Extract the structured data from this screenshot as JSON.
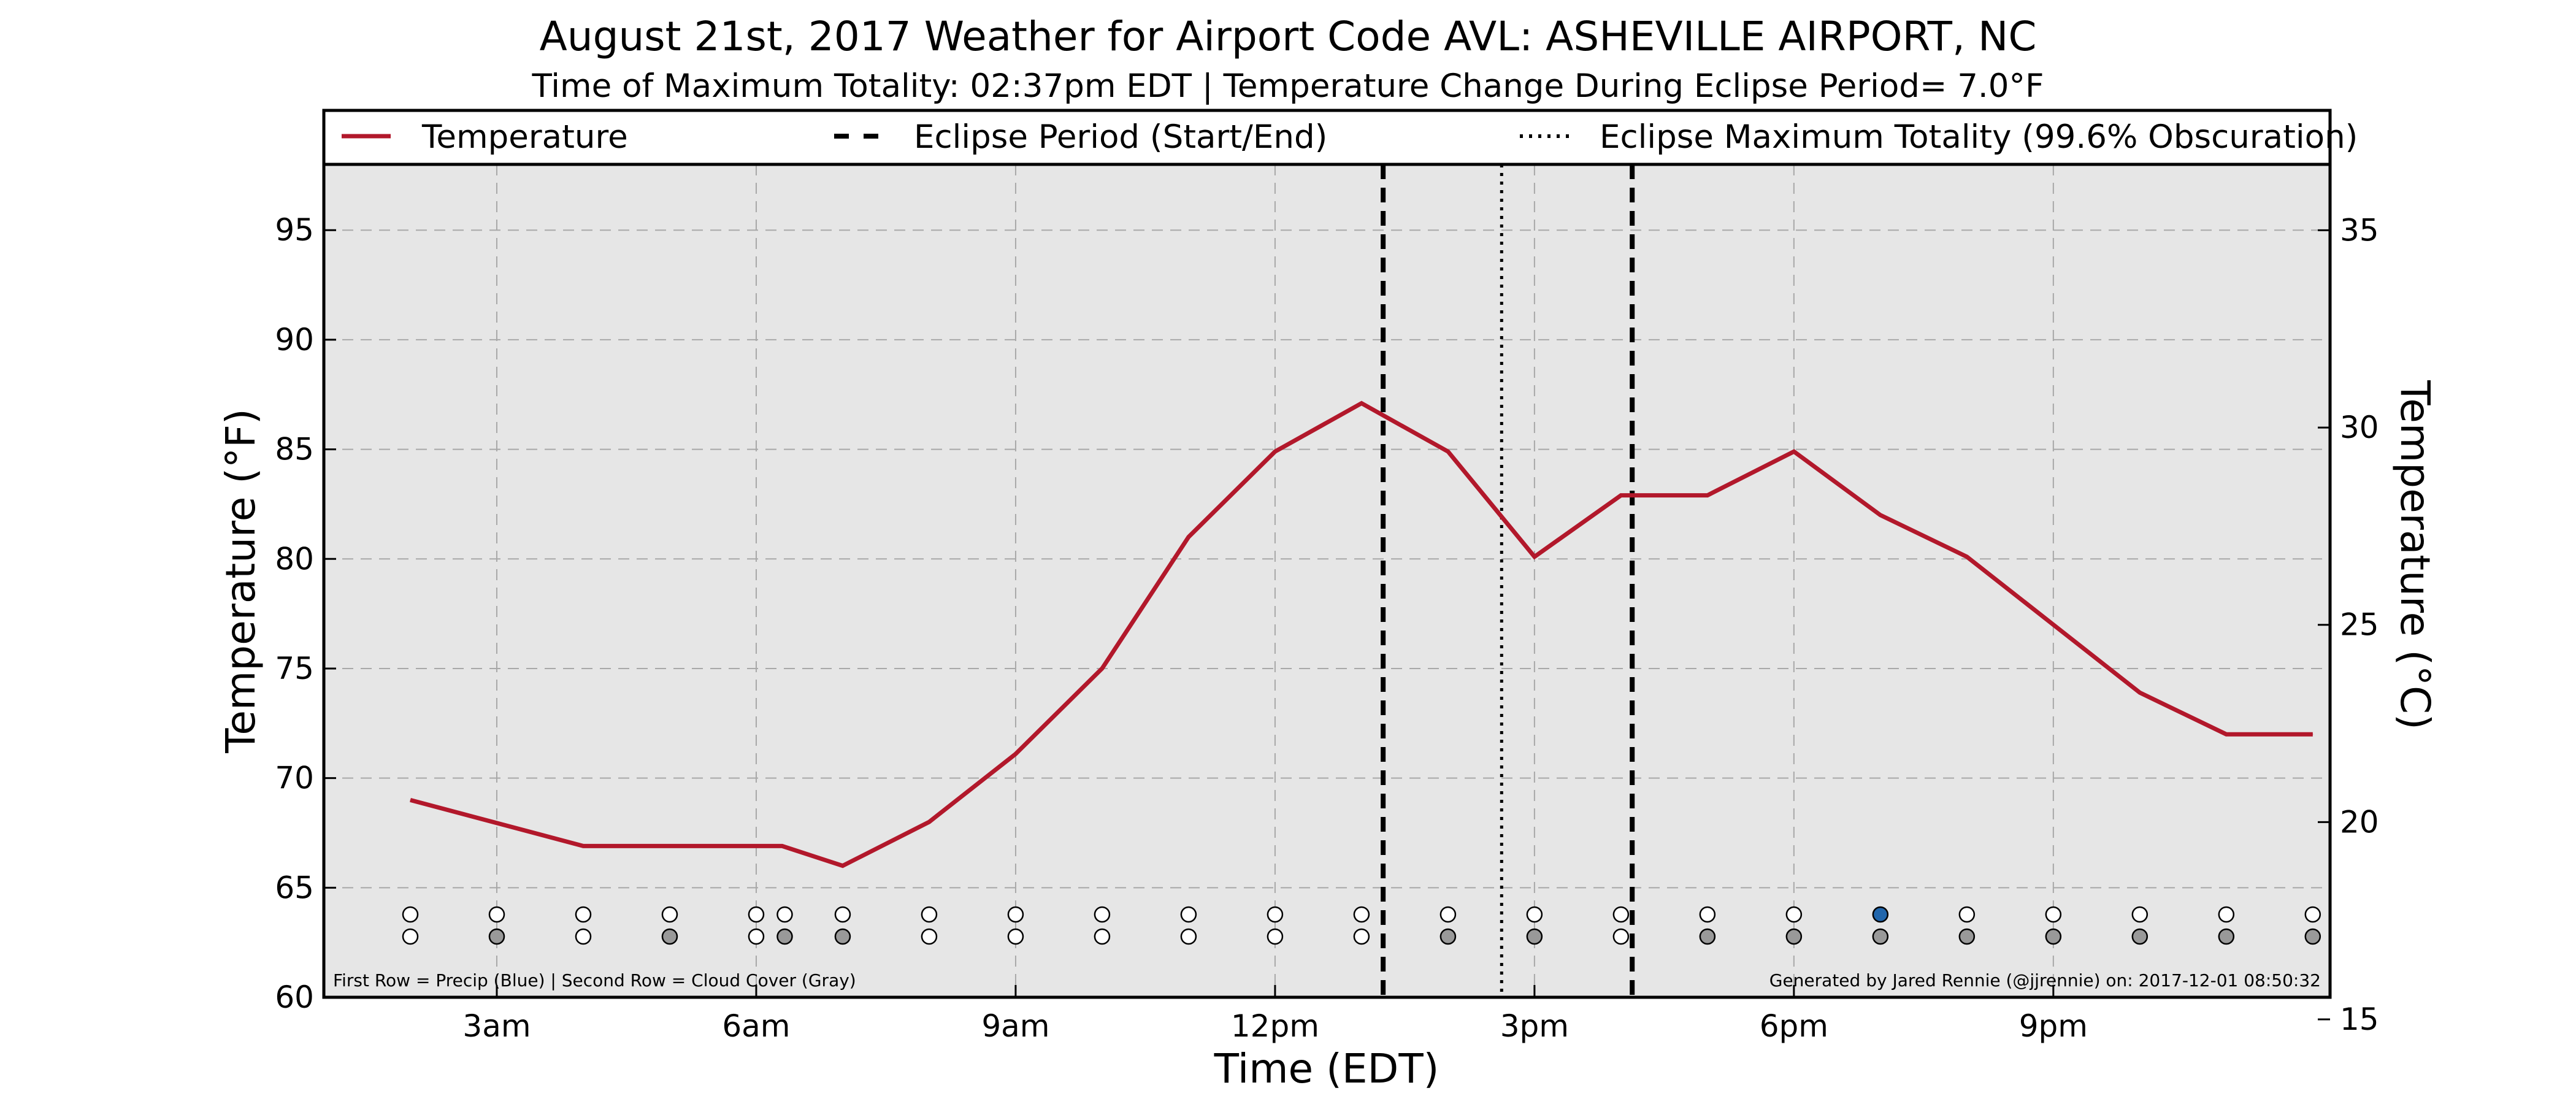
{
  "chart_data": {
    "type": "line",
    "title": "August 21st, 2017 Weather for Airport Code AVL: ASHEVILLE AIRPORT, NC",
    "subtitle": "Time of Maximum Totality: 02:37pm EDT | Temperature Change During Eclipse Period= 7.0°F",
    "xlabel": "Time (EDT)",
    "ylabel": "Temperature (°F)",
    "ylabel_right": "Temperature (°C)",
    "xlim": [
      1.0,
      24.2
    ],
    "ylim": [
      60,
      98
    ],
    "ylim_right": [
      15.56,
      36.67
    ],
    "x_ticks": [
      {
        "x": 3,
        "label": "3am"
      },
      {
        "x": 6,
        "label": "6am"
      },
      {
        "x": 9,
        "label": "9am"
      },
      {
        "x": 12,
        "label": "12pm"
      },
      {
        "x": 15,
        "label": "3pm"
      },
      {
        "x": 18,
        "label": "6pm"
      },
      {
        "x": 21,
        "label": "9pm"
      }
    ],
    "y_ticks": [
      "60",
      "65",
      "70",
      "75",
      "80",
      "85",
      "90",
      "95"
    ],
    "y_ticks_right": [
      "15",
      "20",
      "25",
      "30",
      "35"
    ],
    "grid": true,
    "legend_placement": "top",
    "legend": [
      {
        "label": "Temperature",
        "style": "solid"
      },
      {
        "label": "Eclipse Period (Start/End)",
        "style": "dashed"
      },
      {
        "label": "Eclipse Maximum Totality (99.6% Obscuration)",
        "style": "dotted"
      }
    ],
    "series": [
      {
        "name": "Temperature",
        "color": "#b2182b",
        "x": [
          2,
          4,
          5,
          6,
          6.3,
          7,
          8,
          9,
          10,
          11,
          12,
          13,
          14,
          15,
          16,
          17,
          18,
          19,
          20,
          21,
          22,
          23,
          24
        ],
        "y": [
          69,
          66.9,
          66.9,
          66.9,
          66.9,
          66,
          68,
          71.1,
          75,
          81,
          84.9,
          87.1,
          84.9,
          80.1,
          82.9,
          82.9,
          84.9,
          82,
          80.1,
          77,
          73.9,
          72,
          72
        ]
      }
    ],
    "eclipse_start": 13.25,
    "eclipse_end": 16.13,
    "eclipse_max": 14.62,
    "obs_x": [
      2,
      3,
      4,
      5,
      6,
      6.33,
      7,
      8,
      9,
      10,
      11,
      12,
      13,
      14,
      15,
      16,
      17,
      18,
      19,
      20,
      21,
      22,
      23,
      24
    ],
    "precip_row": [
      "none",
      "none",
      "none",
      "none",
      "none",
      "none",
      "none",
      "none",
      "none",
      "none",
      "none",
      "none",
      "none",
      "none",
      "none",
      "none",
      "none",
      "none",
      "blue",
      "none",
      "none",
      "none",
      "none",
      "none"
    ],
    "cloud_row": [
      "none",
      "gray",
      "none",
      "gray",
      "none",
      "gray",
      "gray",
      "none",
      "none",
      "none",
      "none",
      "none",
      "none",
      "gray",
      "gray",
      "none",
      "gray",
      "gray",
      "gray",
      "gray",
      "gray",
      "gray",
      "gray",
      "gray"
    ],
    "colors": {
      "plot_bg": "#e6e6e6",
      "temperature": "#b2182b",
      "precip": "#2166ac",
      "cloud": "#999999",
      "grid": "#a8a8a8"
    },
    "footnote_left": "First Row = Precip (Blue) | Second Row = Cloud Cover (Gray)",
    "footnote_right": "Generated by Jared Rennie (@jjrennie) on: 2017-12-01 08:50:32"
  }
}
